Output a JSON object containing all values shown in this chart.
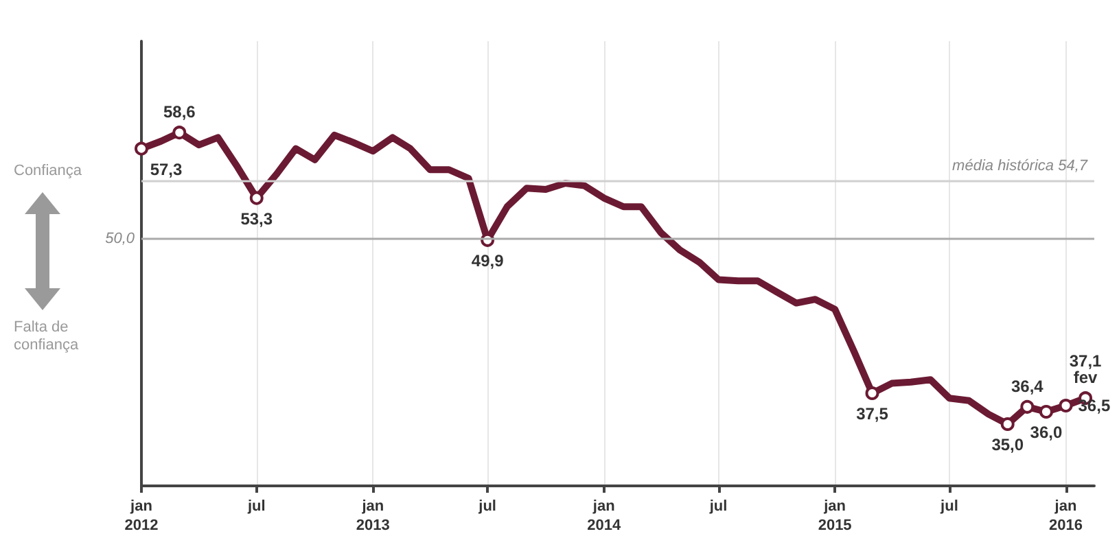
{
  "chart_data": {
    "type": "line",
    "x": [
      "2012-01",
      "2012-02",
      "2012-03",
      "2012-04",
      "2012-05",
      "2012-06",
      "2012-07",
      "2012-08",
      "2012-09",
      "2012-10",
      "2012-11",
      "2012-12",
      "2013-01",
      "2013-02",
      "2013-03",
      "2013-04",
      "2013-05",
      "2013-06",
      "2013-07",
      "2013-08",
      "2013-09",
      "2013-10",
      "2013-11",
      "2013-12",
      "2014-01",
      "2014-02",
      "2014-03",
      "2014-04",
      "2014-05",
      "2014-06",
      "2014-07",
      "2014-08",
      "2014-09",
      "2014-10",
      "2014-11",
      "2014-12",
      "2015-01",
      "2015-02",
      "2015-03",
      "2015-04",
      "2015-05",
      "2015-06",
      "2015-07",
      "2015-08",
      "2015-09",
      "2015-10",
      "2015-11",
      "2015-12",
      "2016-01",
      "2016-02"
    ],
    "series": [
      {
        "color": "#6b1a33",
        "values": [
          57.3,
          57.9,
          58.6,
          57.6,
          58.2,
          55.8,
          53.3,
          55.2,
          57.3,
          56.4,
          58.4,
          57.8,
          57.1,
          58.2,
          57.3,
          55.6,
          55.6,
          54.9,
          49.9,
          52.6,
          54.1,
          54.0,
          54.5,
          54.3,
          53.3,
          52.6,
          52.6,
          50.5,
          49.1,
          48.1,
          46.7,
          46.6,
          46.6,
          45.7,
          44.8,
          45.1,
          44.3,
          40.8,
          37.5,
          38.3,
          38.4,
          38.6,
          37.1,
          36.9,
          35.8,
          35.0,
          36.4,
          36.0,
          36.5,
          37.1
        ],
        "value_labels": [
          "57,3",
          null,
          "58,6",
          null,
          null,
          null,
          "53,3",
          null,
          null,
          null,
          null,
          null,
          null,
          null,
          null,
          null,
          null,
          null,
          "49,9",
          null,
          null,
          null,
          null,
          null,
          null,
          null,
          null,
          null,
          null,
          null,
          null,
          null,
          null,
          null,
          null,
          null,
          null,
          null,
          "37,5",
          null,
          null,
          null,
          null,
          null,
          null,
          "35,0",
          "36,4",
          "36,0",
          "36,5",
          "37,1\nfev"
        ]
      }
    ],
    "xlim": [
      "2012-01",
      "2016-02-15"
    ],
    "xticks": [
      {
        "value": "2012-01",
        "label": "jan\n2012"
      },
      {
        "value": "2012-07",
        "label": "jul"
      },
      {
        "value": "2013-01",
        "label": "jan\n2013"
      },
      {
        "value": "2013-07",
        "label": "jul"
      },
      {
        "value": "2014-01",
        "label": "jan\n2014"
      },
      {
        "value": "2014-07",
        "label": "jul"
      },
      {
        "value": "2015-01",
        "label": "jan\n2015"
      },
      {
        "value": "2015-07",
        "label": "jul"
      },
      {
        "value": "2016-01",
        "label": "jan\n2016"
      }
    ],
    "ylim": [
      30,
      66
    ],
    "ref_lines": [
      {
        "axis": "y",
        "value": 54.7,
        "label": "média histórica 54,7",
        "color": "#d0d0d0"
      },
      {
        "axis": "y",
        "value": 50,
        "label": "50,0",
        "color": "#aaaaaa"
      }
    ],
    "annotations": [
      "Confiança",
      "Falta de confiança"
    ],
    "grid": "x",
    "line_style": "solid"
  }
}
